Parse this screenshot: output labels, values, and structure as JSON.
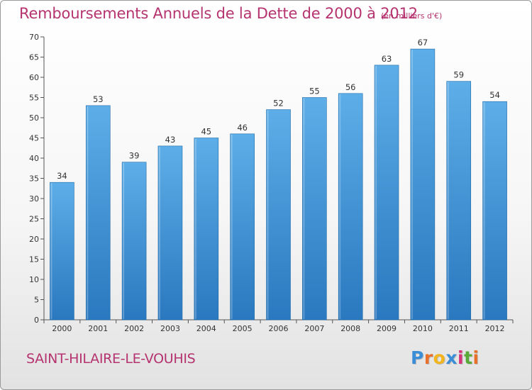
{
  "header": {
    "title": "Remboursements Annuels de la Dette de 2000 à 2012",
    "unit": "(en milliers d'€)"
  },
  "footer": {
    "commune": "SAINT-HILAIRE-LE-VOUHIS",
    "logo_letters": [
      "P",
      "r",
      "o",
      "x",
      "i",
      "t",
      "i"
    ],
    "logo_colors": [
      "#3a8ed8",
      "#e8702a",
      "#f2b51b",
      "#3a8ed8",
      "#d7337a",
      "#5aaa3a",
      "#e8702a"
    ]
  },
  "colors": {
    "bar_light": "#5daee8",
    "bar_dark": "#2a78bf",
    "title": "#b5336e"
  },
  "chart_data": {
    "type": "bar",
    "title": "Remboursements Annuels de la Dette de 2000 à 2012",
    "categories": [
      "2000",
      "2001",
      "2002",
      "2003",
      "2004",
      "2005",
      "2006",
      "2007",
      "2008",
      "2009",
      "2010",
      "2011",
      "2012"
    ],
    "values": [
      34,
      53,
      39,
      43,
      45,
      46,
      52,
      55,
      56,
      63,
      67,
      59,
      54
    ],
    "ylim": [
      0,
      70
    ],
    "yticks": [
      0,
      5,
      10,
      15,
      20,
      25,
      30,
      35,
      40,
      45,
      50,
      55,
      60,
      65,
      70
    ],
    "grid": false,
    "legend": "none"
  }
}
